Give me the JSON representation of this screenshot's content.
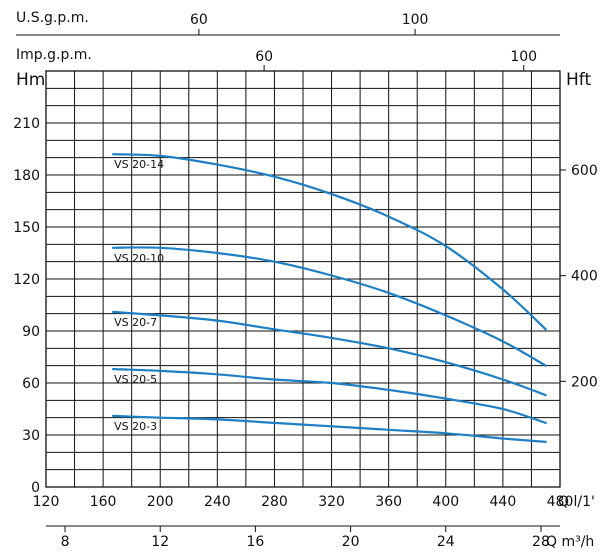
{
  "chart_data": {
    "type": "line",
    "title": "",
    "colors": {
      "curve": "#1d7fc4",
      "grid": "#111111",
      "text": "#111111"
    },
    "axes": {
      "x_bottom": {
        "unit": "Q l/1'",
        "range": [
          120,
          480
        ],
        "ticks": [
          "120",
          "160",
          "200",
          "240",
          "280",
          "320",
          "360",
          "400",
          "440",
          "480"
        ],
        "tick_values": [
          120,
          160,
          200,
          240,
          280,
          320,
          360,
          400,
          440,
          480
        ]
      },
      "x_m3h": {
        "unit": "Q m³/h",
        "ticks": [
          "8",
          "12",
          "16",
          "20",
          "24",
          "28"
        ],
        "tick_values": [
          8,
          12,
          16,
          20,
          24,
          28
        ]
      },
      "x_usgpm": {
        "unit": "U.S.g.p.m.",
        "ticks": [
          "60",
          "100"
        ],
        "tick_values": [
          60,
          100
        ]
      },
      "x_impgpm": {
        "unit": "Imp.g.p.m.",
        "ticks": [
          "60",
          "100"
        ],
        "tick_values": [
          60,
          100
        ]
      },
      "y_left": {
        "unit": "Hm",
        "range": [
          0,
          240
        ],
        "ticks": [
          "0",
          "30",
          "60",
          "90",
          "120",
          "150",
          "180",
          "210"
        ],
        "tick_values": [
          0,
          30,
          60,
          90,
          120,
          150,
          180,
          210
        ]
      },
      "y_right": {
        "unit": "Hft",
        "ticks": [
          "200",
          "400",
          "600"
        ],
        "tick_values": [
          200,
          400,
          600
        ]
      }
    },
    "series": [
      {
        "name": "VS 20-14",
        "x": [
          167,
          200,
          240,
          280,
          320,
          360,
          400,
          440,
          470
        ],
        "y": [
          192,
          191,
          186,
          179,
          169,
          156,
          139,
          114,
          91
        ]
      },
      {
        "name": "VS 20-10",
        "x": [
          167,
          200,
          240,
          280,
          320,
          360,
          400,
          440,
          470
        ],
        "y": [
          138,
          138,
          135,
          130,
          122,
          112,
          99,
          84,
          70
        ]
      },
      {
        "name": "VS 20-7",
        "x": [
          167,
          200,
          240,
          280,
          320,
          360,
          400,
          440,
          470
        ],
        "y": [
          101,
          99,
          96,
          91,
          86,
          80,
          72,
          62,
          53
        ]
      },
      {
        "name": "VS 20-5",
        "x": [
          167,
          200,
          240,
          280,
          320,
          360,
          400,
          440,
          470
        ],
        "y": [
          68,
          67,
          65,
          62,
          60,
          56,
          51,
          45,
          37
        ]
      },
      {
        "name": "VS 20-3",
        "x": [
          167,
          200,
          240,
          280,
          320,
          360,
          400,
          440,
          470
        ],
        "y": [
          41,
          40,
          39,
          37,
          35,
          33,
          31,
          28,
          26
        ]
      }
    ]
  }
}
